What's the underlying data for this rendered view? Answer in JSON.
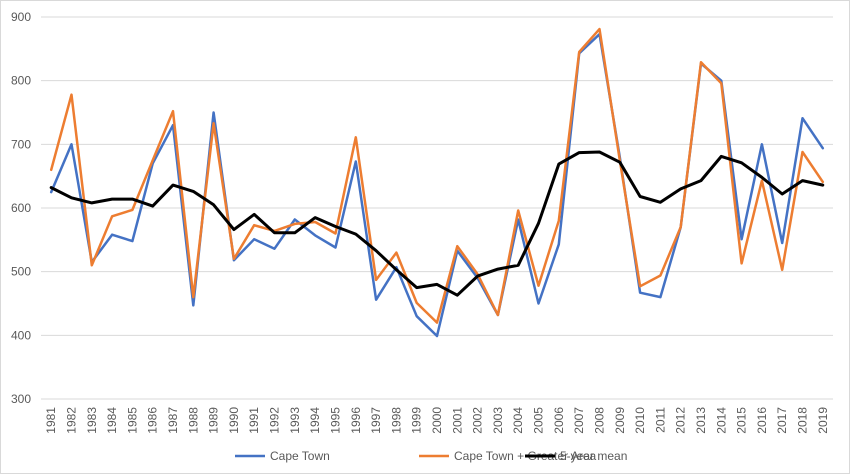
{
  "chart_data": {
    "type": "line",
    "title": "",
    "xlabel": "",
    "ylabel": "",
    "x": [
      "1981",
      "1982",
      "1983",
      "1984",
      "1985",
      "1986",
      "1987",
      "1988",
      "1989",
      "1990",
      "1991",
      "1992",
      "1993",
      "1994",
      "1995",
      "1996",
      "1997",
      "1998",
      "1999",
      "2000",
      "2001",
      "2002",
      "2003",
      "2004",
      "2005",
      "2006",
      "2007",
      "2008",
      "2009",
      "2010",
      "2011",
      "2012",
      "2013",
      "2014",
      "2015",
      "2016",
      "2017",
      "2018",
      "2019"
    ],
    "ylim": [
      300,
      900
    ],
    "yticks": [
      "300",
      "400",
      "500",
      "600",
      "700",
      "800",
      "900"
    ],
    "grid": "horizontal",
    "legend_position": "bottom",
    "series": [
      {
        "name": "Cape Town",
        "color": "#4472C4",
        "values": [
          625,
          700,
          515,
          558,
          548,
          670,
          730,
          447,
          750,
          518,
          551,
          536,
          582,
          557,
          538,
          673,
          456,
          507,
          430,
          399,
          533,
          490,
          432,
          582,
          450,
          543,
          843,
          873,
          680,
          467,
          460,
          570,
          827,
          800,
          551,
          700,
          545,
          741,
          694
        ]
      },
      {
        "name": "Cape Town + Greater Area",
        "color": "#ED7D31",
        "values": [
          660,
          778,
          510,
          587,
          597,
          675,
          752,
          460,
          733,
          520,
          573,
          564,
          575,
          578,
          560,
          711,
          487,
          530,
          451,
          420,
          540,
          496,
          432,
          596,
          478,
          580,
          845,
          881,
          675,
          477,
          494,
          570,
          829,
          796,
          513,
          643,
          503,
          688,
          641
        ]
      },
      {
        "name": "5-year mean",
        "color": "#000000",
        "values": [
          632,
          616,
          608,
          614,
          614,
          603,
          636,
          626,
          605,
          566,
          590,
          561,
          561,
          585,
          571,
          559,
          533,
          503,
          475,
          480,
          463,
          493,
          504,
          510,
          576,
          669,
          687,
          688,
          672,
          618,
          609,
          630,
          643,
          681,
          671,
          648,
          622,
          643,
          636
        ]
      }
    ]
  }
}
